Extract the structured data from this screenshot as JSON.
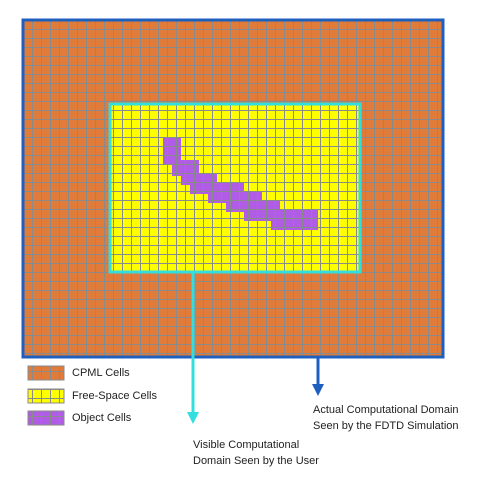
{
  "legend": [
    {
      "label": "CPML Cells"
    },
    {
      "label": "Free-Space Cells"
    },
    {
      "label": "Object Cells"
    }
  ],
  "annotations": {
    "actual_domain": [
      "Actual Computational Domain",
      "Seen by the FDTD Simulation"
    ],
    "visible_domain": [
      "Visible Computational",
      "Domain Seen by the User"
    ]
  }
}
